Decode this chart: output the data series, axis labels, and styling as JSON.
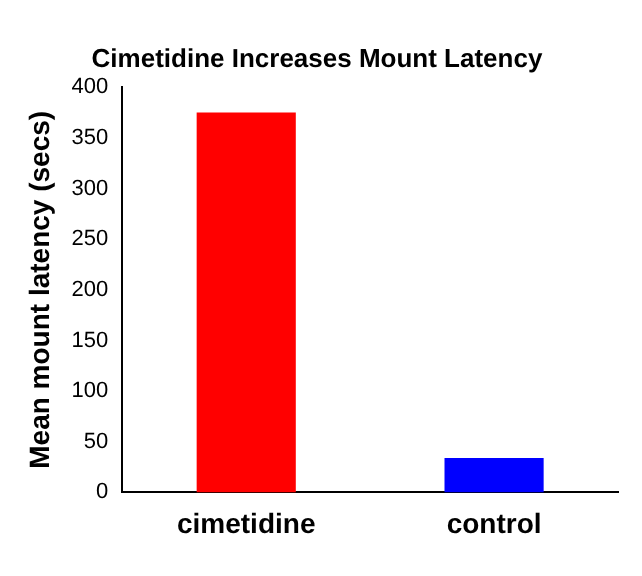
{
  "chart_data": {
    "type": "bar",
    "title": "Cimetidine Increases Mount Latency",
    "ylabel": "Mean mount latency (secs)",
    "categories": [
      "cimetidine",
      "control"
    ],
    "values": [
      375,
      34
    ],
    "colors": [
      "#ff0000",
      "#0000ff"
    ],
    "ylim": [
      0,
      400
    ],
    "yticks": [
      0,
      50,
      100,
      150,
      200,
      250,
      300,
      350,
      400
    ],
    "grid": false,
    "legend": false
  }
}
